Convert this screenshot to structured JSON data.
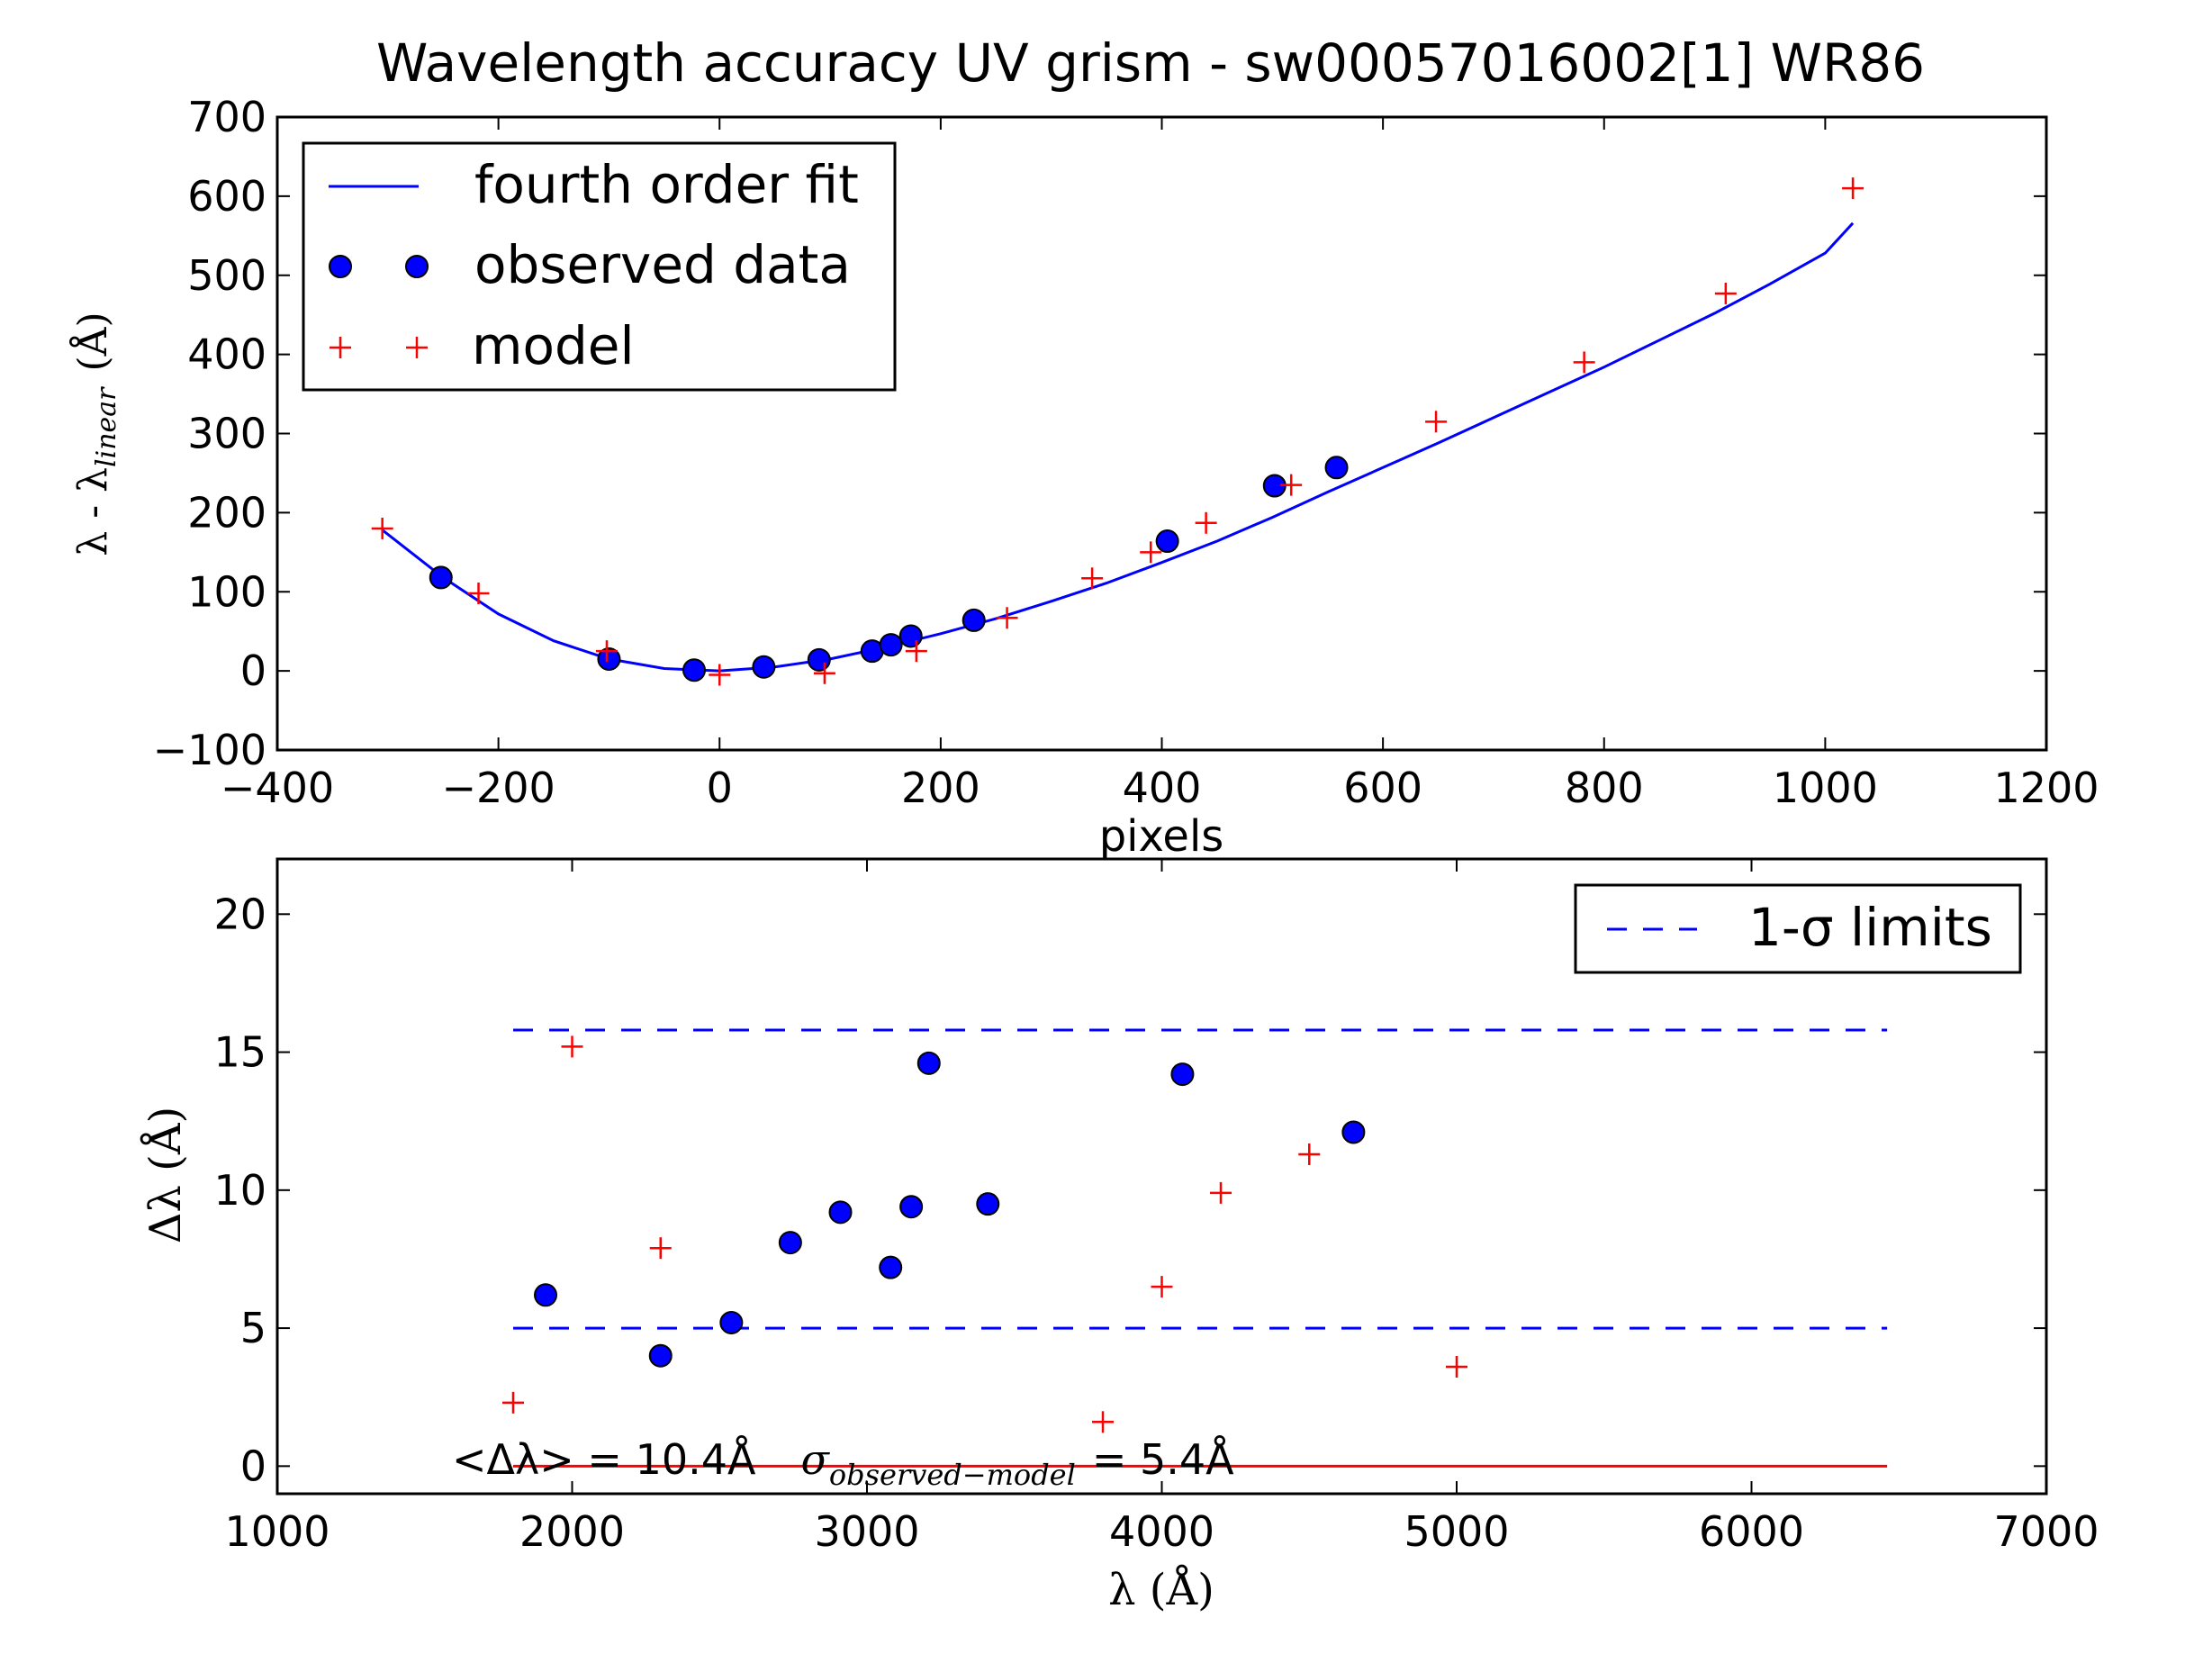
{
  "chart_data": [
    {
      "type": "scatter",
      "title": "Wavelength accuracy UV grism - sw00057016002[1] WR86",
      "xlabel": "pixels",
      "ylabel_main": "λ - λ",
      "ylabel_sub": "linear",
      "ylabel_unit": "(Å)",
      "xlim": [
        -400,
        1200
      ],
      "ylim": [
        -100,
        700
      ],
      "xticks": [
        -400,
        -200,
        0,
        200,
        400,
        600,
        800,
        1000,
        1200
      ],
      "yticks": [
        -100,
        0,
        100,
        200,
        300,
        400,
        500,
        600,
        700
      ],
      "xtick_labels": [
        "−400",
        "−200",
        "0",
        "200",
        "400",
        "600",
        "800",
        "1000",
        "1200"
      ],
      "ytick_labels": [
        "−100",
        "0",
        "100",
        "200",
        "300",
        "400",
        "500",
        "600",
        "700"
      ],
      "grid": false,
      "legend_position": "top-left",
      "series": [
        {
          "name": "fourth order fit",
          "kind": "line",
          "color": "#0000ff",
          "x": [
            -305,
            -250,
            -200,
            -150,
            -100,
            -50,
            0,
            50,
            100,
            150,
            200,
            250,
            300,
            350,
            400,
            450,
            500,
            550,
            600,
            650,
            700,
            750,
            800,
            850,
            900,
            950,
            1000,
            1025
          ],
          "y": [
            178,
            118,
            72,
            38,
            15,
            3,
            0,
            5,
            15,
            30,
            47,
            66,
            88,
            111,
            137,
            164,
            194,
            226,
            257,
            288,
            320,
            352,
            384,
            418,
            452,
            489,
            528,
            566
          ]
        },
        {
          "name": "observed data",
          "kind": "points",
          "color": "#0000ff",
          "x": [
            -252,
            -100,
            -23,
            40,
            90,
            138,
            155,
            173,
            230,
            405,
            502,
            558
          ],
          "y": [
            118,
            15,
            1,
            5,
            14,
            25,
            33,
            44,
            64,
            164,
            234,
            257
          ]
        },
        {
          "name": "model",
          "kind": "plus",
          "color": "#ff0000",
          "x": [
            -305,
            -218,
            -102,
            0,
            95,
            178,
            260,
            337,
            390,
            440,
            517,
            648,
            782,
            910,
            1025
          ],
          "y": [
            180,
            98,
            25,
            -5,
            -3,
            25,
            67,
            117,
            150,
            187,
            235,
            315,
            390,
            477,
            610
          ]
        }
      ]
    },
    {
      "type": "scatter",
      "xlabel": "λ (Å)",
      "ylabel": "Δλ (Å)",
      "xlim": [
        1000,
        7000
      ],
      "ylim": [
        -1,
        22
      ],
      "xticks": [
        1000,
        2000,
        3000,
        4000,
        5000,
        6000,
        7000
      ],
      "yticks": [
        0,
        5,
        10,
        15,
        20
      ],
      "xtick_labels": [
        "1000",
        "2000",
        "3000",
        "4000",
        "5000",
        "6000",
        "7000"
      ],
      "ytick_labels": [
        "0",
        "5",
        "10",
        "15",
        "20"
      ],
      "grid": false,
      "legend_position": "top-right",
      "annotation_part1": "<Δλ> = 10.4Å",
      "annotation_sigma": "σ",
      "annotation_sigma_sub": "observed−model",
      "annotation_part2": "= 5.4Å",
      "series": [
        {
          "name": "1-σ limits",
          "kind": "dashed",
          "color": "#0000ff",
          "segments": [
            {
              "x": [
                1800,
                6460
              ],
              "y": [
                15.8,
                15.8
              ]
            },
            {
              "x": [
                1800,
                6460
              ],
              "y": [
                5.0,
                5.0
              ]
            }
          ]
        },
        {
          "kind": "line",
          "color": "#ff0000",
          "x": [
            1800,
            6460
          ],
          "y": [
            0,
            0
          ]
        },
        {
          "kind": "points",
          "color": "#0000ff",
          "x": [
            1910,
            2300,
            2540,
            2740,
            2910,
            3080,
            3150,
            3210,
            3410,
            4070,
            4650
          ],
          "y": [
            6.2,
            4.0,
            5.2,
            8.1,
            9.2,
            7.2,
            9.4,
            14.6,
            9.5,
            14.2,
            12.1
          ]
        },
        {
          "kind": "plus",
          "color": "#ff0000",
          "x": [
            1800,
            2000,
            2300,
            3800,
            4000,
            4200,
            4500,
            5000
          ],
          "y": [
            2.3,
            15.2,
            7.9,
            1.6,
            6.5,
            9.9,
            11.3,
            3.6
          ]
        }
      ]
    }
  ]
}
